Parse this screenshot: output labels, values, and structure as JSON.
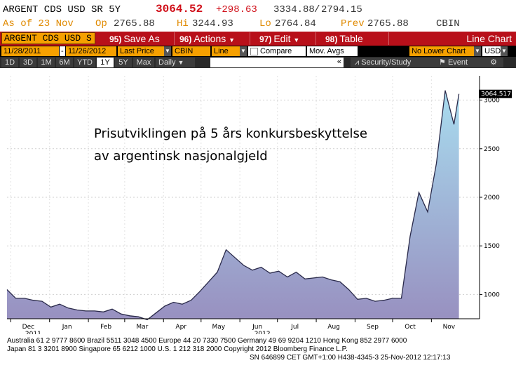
{
  "quote": {
    "ticker": "ARGENT CDS USD SR 5Y",
    "last": "3064.52",
    "change": "+298.63",
    "range": "3334.88",
    "range2": "2794.15",
    "asof": "As of 23 Nov",
    "open_label": "Op",
    "open": "2765.88",
    "hi_label": "Hi",
    "hi": "3244.93",
    "lo_label": "Lo",
    "lo": "2764.84",
    "prev_label": "Prev",
    "prev": "2765.88",
    "source": "CBIN"
  },
  "menubar": {
    "ticker_box": "ARGENT CDS USD S",
    "save": {
      "num": "95)",
      "label": "Save As"
    },
    "actions": {
      "num": "96)",
      "label": "Actions"
    },
    "edit": {
      "num": "97)",
      "label": "Edit"
    },
    "table": {
      "num": "98)",
      "label": "Table"
    },
    "chart_type": "Line Chart"
  },
  "controls": {
    "start_date": "11/28/2011",
    "dash": "-",
    "end_date": "11/26/2012",
    "field": "Last Price",
    "source": "CBIN",
    "style": "Line",
    "compare": "Compare",
    "mov_avgs": "Mov. Avgs",
    "lower_chart": "No Lower Chart",
    "currency": "USD"
  },
  "periods": [
    "1D",
    "3D",
    "1M",
    "6M",
    "YTD",
    "1Y",
    "5Y",
    "Max"
  ],
  "period_selected": "1Y",
  "frequency": "Daily",
  "security_study": "Security/Study",
  "event": "Event",
  "colors": {
    "accent_red": "#b8101a",
    "orange": "#f6a000",
    "price_red": "#d0101a",
    "area_top": "#a8dcef",
    "area_bottom": "#9890c0"
  },
  "chart_data": {
    "type": "area",
    "annotation_line1": "Prisutviklingen på 5 års konkursbeskyttelse",
    "annotation_line2": "av argentinsk nasjonalgjeld",
    "last_value_label": "3064.517",
    "y_ticks": [
      1000,
      1500,
      2000,
      2500,
      3000
    ],
    "y_tick_labels": [
      "1000",
      "1500",
      "2000",
      "2500",
      "3000"
    ],
    "ylim": [
      750,
      3250
    ],
    "x_labels": [
      "Dec",
      "Jan",
      "Feb",
      "Mar",
      "Apr",
      "May",
      "Jun",
      "Jul",
      "Aug",
      "Sep",
      "Oct",
      "Nov"
    ],
    "year_labels": [
      {
        "text": "2011",
        "at": "2011-12-01"
      },
      {
        "text": "2012",
        "at": "2012-06-01"
      }
    ],
    "x_label_dates": [
      "2011-12-15",
      "2012-01-15",
      "2012-02-15",
      "2012-03-15",
      "2012-04-15",
      "2012-05-15",
      "2012-06-15",
      "2012-07-15",
      "2012-08-15",
      "2012-09-15",
      "2012-10-15",
      "2012-11-15"
    ],
    "x_tick_dates": [
      "2011-12-01",
      "2012-01-01",
      "2012-02-01",
      "2012-03-01",
      "2012-04-01",
      "2012-05-01",
      "2012-06-01",
      "2012-07-01",
      "2012-08-01",
      "2012-09-01",
      "2012-10-01",
      "2012-11-01"
    ],
    "x_range": [
      "2011-11-28",
      "2012-11-26"
    ],
    "series": [
      {
        "x": [
          "2011-11-28",
          "2011-12-05",
          "2011-12-12",
          "2011-12-19",
          "2011-12-26",
          "2012-01-02",
          "2012-01-09",
          "2012-01-16",
          "2012-01-23",
          "2012-01-30",
          "2012-02-06",
          "2012-02-13",
          "2012-02-20",
          "2012-02-27",
          "2012-03-05",
          "2012-03-12",
          "2012-03-19",
          "2012-03-26",
          "2012-04-02",
          "2012-04-09",
          "2012-04-16",
          "2012-04-23",
          "2012-04-30",
          "2012-05-07",
          "2012-05-14",
          "2012-05-21",
          "2012-05-28",
          "2012-06-04",
          "2012-06-11",
          "2012-06-18",
          "2012-06-25",
          "2012-07-02",
          "2012-07-09",
          "2012-07-16",
          "2012-07-23",
          "2012-07-30",
          "2012-08-06",
          "2012-08-13",
          "2012-08-20",
          "2012-08-27",
          "2012-09-03",
          "2012-09-10",
          "2012-09-17",
          "2012-09-24",
          "2012-10-01",
          "2012-10-08",
          "2012-10-15",
          "2012-10-22",
          "2012-10-29",
          "2012-11-05",
          "2012-11-12",
          "2012-11-19",
          "2012-11-23"
        ],
        "y": [
          1050,
          960,
          960,
          940,
          930,
          870,
          900,
          860,
          840,
          830,
          830,
          820,
          850,
          800,
          780,
          770,
          740,
          810,
          880,
          920,
          900,
          940,
          1030,
          1130,
          1230,
          1460,
          1380,
          1300,
          1250,
          1280,
          1220,
          1240,
          1180,
          1230,
          1160,
          1170,
          1180,
          1150,
          1130,
          1050,
          950,
          960,
          930,
          940,
          960,
          960,
          1600,
          2050,
          1850,
          2350,
          3100,
          2750,
          3064
        ]
      }
    ]
  },
  "footer": {
    "line1": "Australia 61 2 9777 8600 Brazil 5511 3048 4500 Europe 44 20 7330 7500 Germany 49 69 9204 1210 Hong Kong 852 2977 6000",
    "line2": "Japan 81 3 3201 8900       Singapore 65 6212 1000       U.S. 1 212 318 2000       Copyright 2012 Bloomberg Finance L.P.",
    "line3": "SN 646899 CET  GMT+1:00 H438-4345-3 25-Nov-2012 12:17:13"
  }
}
